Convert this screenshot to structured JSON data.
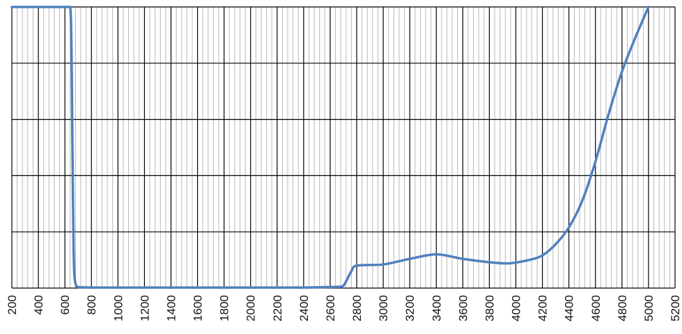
{
  "chart_data": {
    "type": "line",
    "title": "",
    "xlabel": "",
    "ylabel": "",
    "xlim": [
      200,
      5200
    ],
    "ylim": [
      0,
      5
    ],
    "grid": true,
    "x_ticks": [
      200,
      400,
      600,
      800,
      1000,
      1200,
      1400,
      1600,
      1800,
      2000,
      2200,
      2400,
      2600,
      2800,
      3000,
      3200,
      3400,
      3600,
      3800,
      4000,
      4200,
      4400,
      4600,
      4800,
      5000,
      5200
    ],
    "x_tick_labels": [
      "200",
      "400",
      "600",
      "800",
      "1000",
      "1200",
      "1400",
      "1600",
      "1800",
      "2000",
      "2200",
      "2400",
      "2600",
      "2800",
      "3000",
      "3200",
      "3400",
      "3600",
      "3800",
      "4000",
      "4200",
      "4400",
      "4600",
      "4800",
      "5000",
      "5200"
    ],
    "series": [
      {
        "name": "",
        "color": "#4f81bd",
        "x": [
          200,
          400,
          600,
          640,
          650,
          655,
          660,
          665,
          670,
          680,
          700,
          800,
          1000,
          1400,
          2000,
          2400,
          2600,
          2690,
          2720,
          2760,
          2800,
          3000,
          3200,
          3400,
          3600,
          3800,
          3950,
          4100,
          4200,
          4300,
          4400,
          4500,
          4600,
          4700,
          4800,
          4900,
          5000
        ],
        "y": [
          5,
          5,
          5,
          5,
          4.2,
          3.0,
          1.8,
          0.8,
          0.3,
          0.08,
          0.02,
          0.01,
          0.01,
          0.01,
          0.01,
          0.01,
          0.02,
          0.03,
          0.12,
          0.3,
          0.4,
          0.42,
          0.52,
          0.6,
          0.52,
          0.46,
          0.44,
          0.5,
          0.58,
          0.78,
          1.08,
          1.55,
          2.25,
          3.1,
          3.85,
          4.45,
          5.0
        ]
      }
    ]
  }
}
